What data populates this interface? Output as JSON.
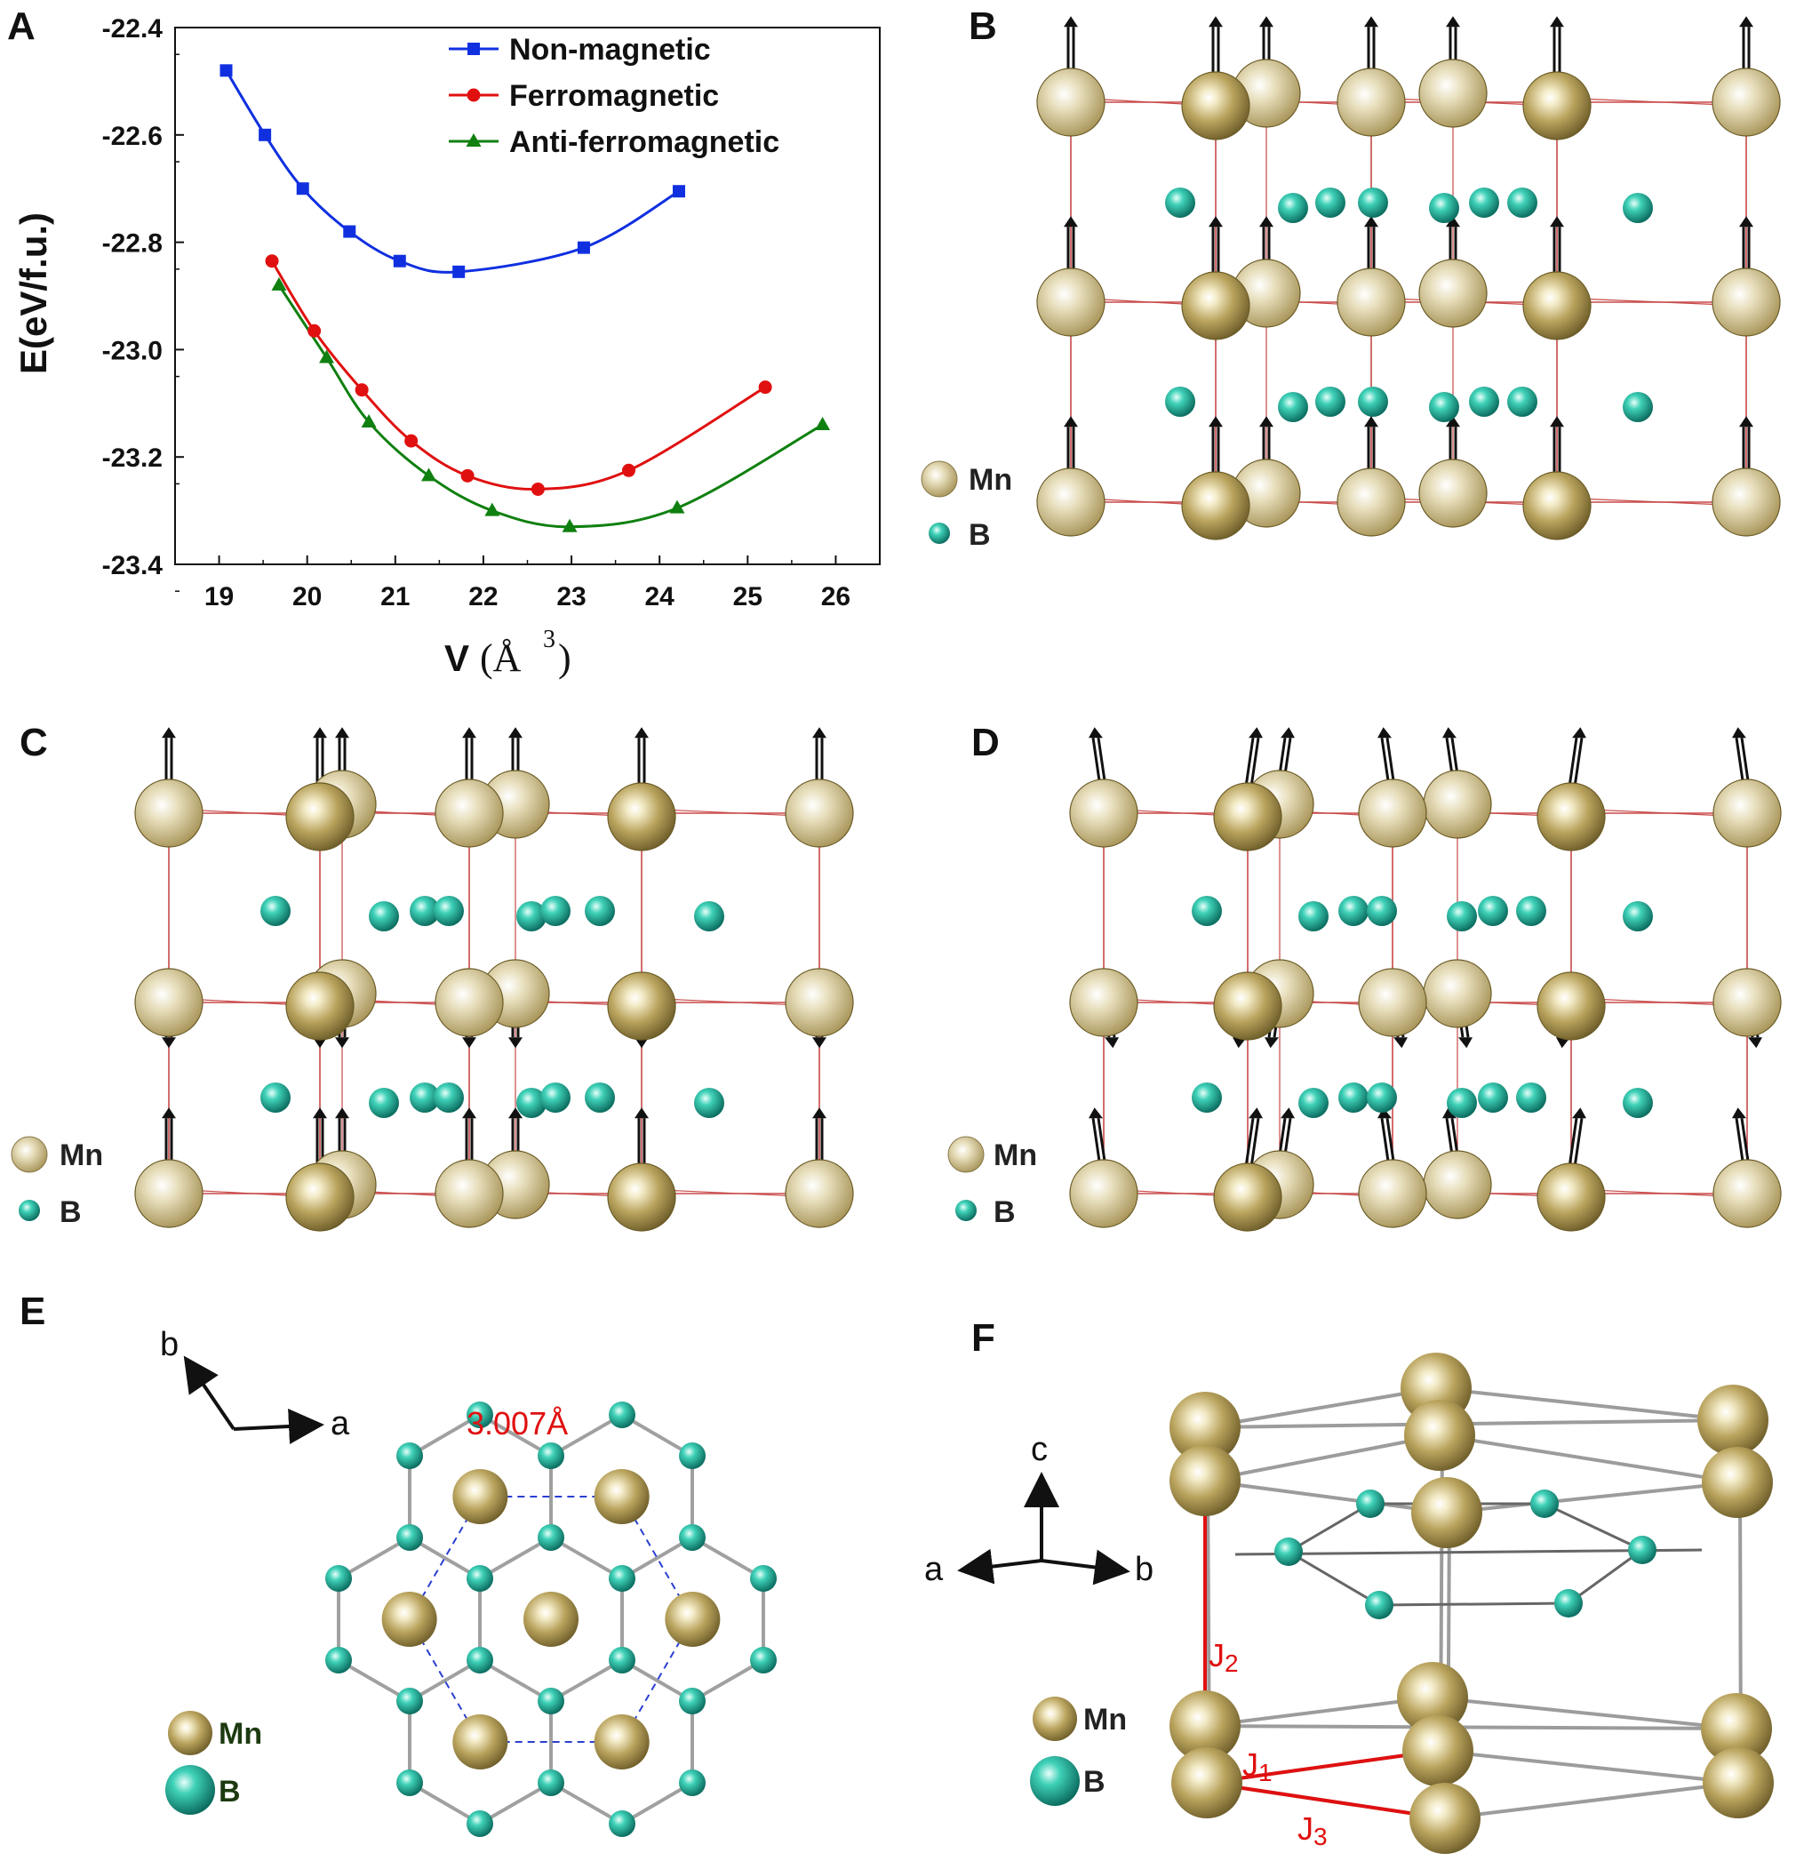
{
  "panels": [
    "A",
    "B",
    "C",
    "D",
    "E",
    "F"
  ],
  "legend_atoms": {
    "mn": "Mn",
    "b": "B"
  },
  "colors": {
    "mn": "#b19a55",
    "b": "#1bb8a0",
    "bond": "#c44",
    "nm": "#1030e0",
    "fm": "#e01010",
    "afm": "#108010"
  },
  "panel_e": {
    "distance": "3.007Å",
    "axis_a": "a",
    "axis_b": "b"
  },
  "panel_f": {
    "axis_a": "a",
    "axis_b": "b",
    "axis_c": "c",
    "j1": "J",
    "j1_sub": "1",
    "j2": "J",
    "j2_sub": "2",
    "j3": "J",
    "j3_sub": "3"
  },
  "chart_data": {
    "type": "line",
    "title": "",
    "xlabel_main": "V",
    "xlabel_unit": "(Å",
    "xlabel_sup": "3",
    "xlabel_close": ")",
    "ylabel": "E(eV/f.u.)",
    "xlim": [
      18.5,
      26.5
    ],
    "ylim": [
      -23.4,
      -22.4
    ],
    "xticks": [
      19,
      20,
      21,
      22,
      23,
      24,
      25,
      26
    ],
    "yticks": [
      -22.4,
      -22.6,
      -22.8,
      -23.0,
      -23.2,
      -23.4
    ],
    "ytick_labels": [
      "-22.4",
      "-22.6",
      "-22.8",
      "-23.0",
      "-23.2",
      "-23.4"
    ],
    "legend_position": "top-right",
    "series": [
      {
        "name": "Non-magnetic",
        "color": "#1030e0",
        "marker": "square",
        "x": [
          19.08,
          19.52,
          19.95,
          20.48,
          21.05,
          21.72,
          23.14,
          24.22
        ],
        "y": [
          -22.48,
          -22.6,
          -22.7,
          -22.78,
          -22.835,
          -22.855,
          -22.81,
          -22.705
        ]
      },
      {
        "name": "Ferromagnetic",
        "color": "#e01010",
        "marker": "circle",
        "x": [
          19.6,
          20.08,
          20.62,
          21.18,
          21.82,
          22.62,
          23.65,
          25.2
        ],
        "y": [
          -22.835,
          -22.965,
          -23.075,
          -23.17,
          -23.235,
          -23.26,
          -23.225,
          -23.07
        ]
      },
      {
        "name": "Anti-ferromagnetic",
        "color": "#108010",
        "marker": "triangle",
        "x": [
          19.68,
          20.22,
          20.7,
          21.38,
          22.1,
          22.98,
          24.2,
          25.85
        ],
        "y": [
          -22.88,
          -23.015,
          -23.135,
          -23.235,
          -23.3,
          -23.33,
          -23.295,
          -23.14
        ]
      }
    ]
  }
}
